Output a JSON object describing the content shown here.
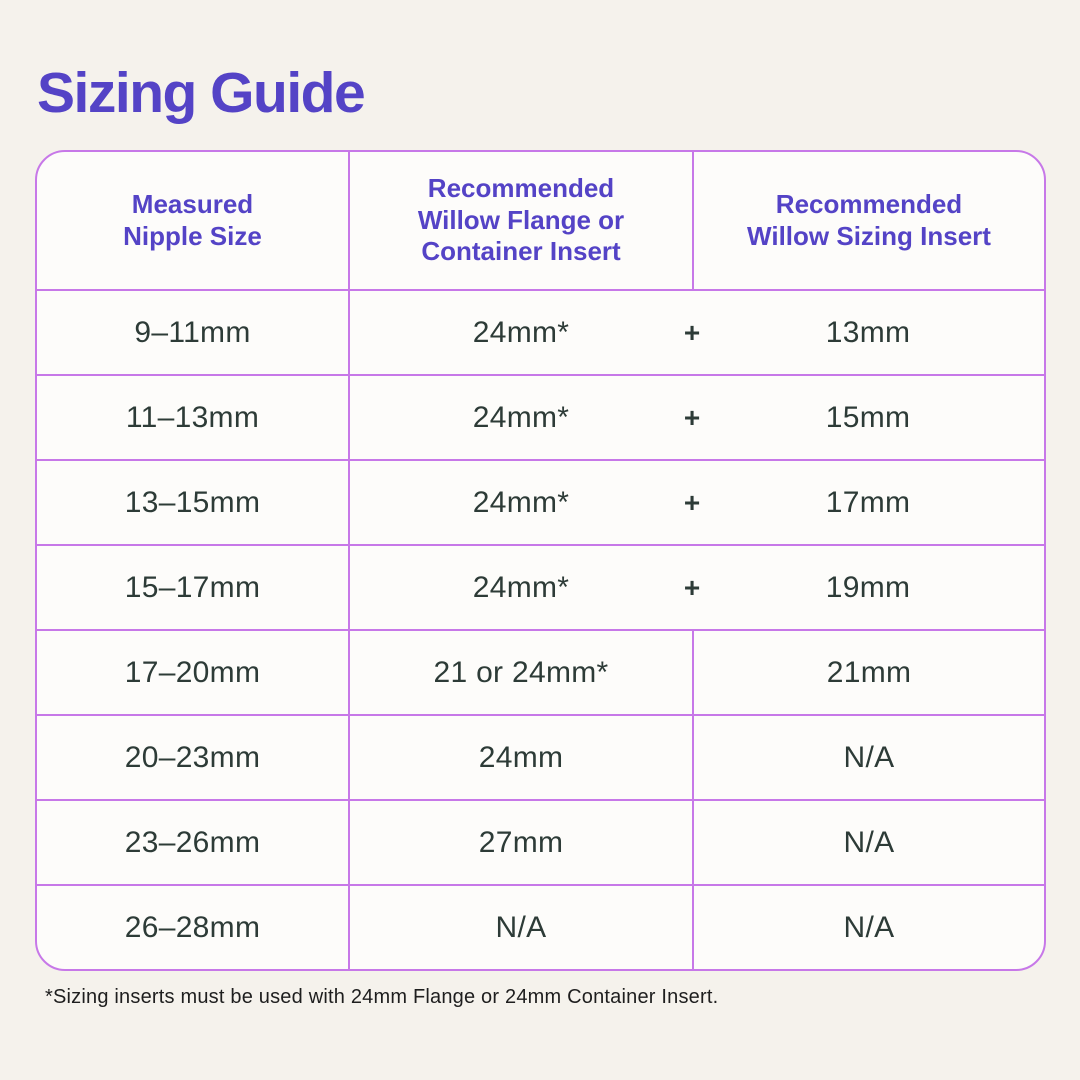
{
  "title": "Sizing Guide",
  "footnote": "*Sizing inserts must be used with 24mm Flange or 24mm Container Insert.",
  "table": {
    "headers": [
      "Measured Nipple Size",
      "Recommended Willow Flange or Container Insert",
      "Recommended Willow Sizing Insert"
    ],
    "rows": [
      {
        "cells": [
          "9–11mm",
          "24mm*",
          "13mm"
        ],
        "joiner": "+"
      },
      {
        "cells": [
          "11–13mm",
          "24mm*",
          "15mm"
        ],
        "joiner": "+"
      },
      {
        "cells": [
          "13–15mm",
          "24mm*",
          "17mm"
        ],
        "joiner": "+"
      },
      {
        "cells": [
          "15–17mm",
          "24mm*",
          "19mm"
        ],
        "joiner": "+"
      },
      {
        "cells": [
          "17–20mm",
          "21 or 24mm*",
          "21mm"
        ]
      },
      {
        "cells": [
          "20–23mm",
          "24mm",
          "N/A"
        ]
      },
      {
        "cells": [
          "23–26mm",
          "27mm",
          "N/A"
        ]
      },
      {
        "cells": [
          "26–28mm",
          "N/A",
          "N/A"
        ]
      }
    ]
  },
  "colors": {
    "background": "#F5F2EC",
    "table_background": "#FDFCFA",
    "table_border": "#C778E8",
    "heading_purple": "#5443C6",
    "body_text": "#2D3B37",
    "footnote_text": "#1E1E1E"
  },
  "chart_data": {
    "type": "table",
    "title": "Sizing Guide",
    "columns": [
      "Measured Nipple Size",
      "Recommended Willow Flange or Container Insert",
      "Recommended Willow Sizing Insert"
    ],
    "rows": [
      [
        "9–11mm",
        "24mm*",
        "13mm"
      ],
      [
        "11–13mm",
        "24mm*",
        "15mm"
      ],
      [
        "13–15mm",
        "24mm*",
        "17mm"
      ],
      [
        "15–17mm",
        "24mm*",
        "19mm"
      ],
      [
        "17–20mm",
        "21 or 24mm*",
        "21mm"
      ],
      [
        "20–23mm",
        "24mm",
        "N/A"
      ],
      [
        "23–26mm",
        "27mm",
        "N/A"
      ],
      [
        "26–28mm",
        "N/A",
        "N/A"
      ]
    ],
    "merged_plus_rows": [
      0,
      1,
      2,
      3
    ],
    "footnote": "*Sizing inserts must be used with 24mm Flange or 24mm Container Insert."
  }
}
